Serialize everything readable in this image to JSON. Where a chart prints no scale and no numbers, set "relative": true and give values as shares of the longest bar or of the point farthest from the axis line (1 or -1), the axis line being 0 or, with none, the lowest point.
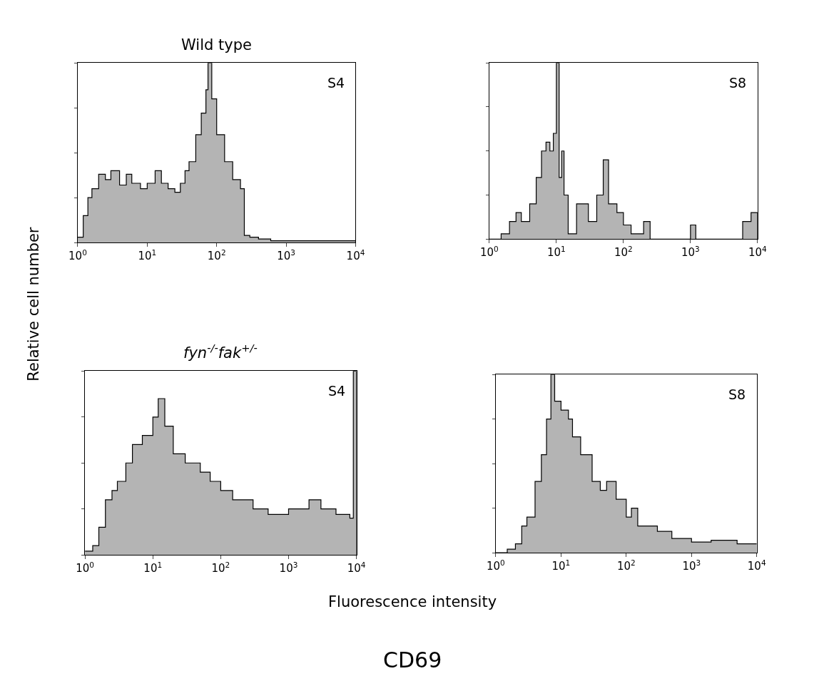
{
  "chart_data": [
    {
      "type": "area",
      "title": "Wild type",
      "ylabel": "Relative cell number",
      "annotations": [
        "S4"
      ],
      "relative": true,
      "log": "x",
      "tick_labels": "x",
      "xlim": [
        1,
        10000
      ],
      "xticks": [
        {
          "value": 1,
          "label": "10$^{0}$"
        },
        {
          "value": 10,
          "label": "10$^{1}$"
        },
        {
          "value": 100,
          "label": "10$^{2}$"
        },
        {
          "value": 1000,
          "label": "10$^{3}$"
        },
        {
          "value": 10000,
          "label": "10$^{4}$"
        }
      ],
      "series": [
        {
          "color": "#b4b4b4",
          "x": [
            1,
            1.2,
            1.4,
            1.6,
            2,
            2.5,
            3,
            4,
            5,
            6,
            8,
            10,
            13,
            16,
            20,
            25,
            30,
            35,
            40,
            50,
            60,
            70,
            75,
            85,
            100,
            130,
            170,
            220,
            250,
            300,
            400,
            600,
            1000,
            2000,
            10000
          ],
          "values": [
            0.03,
            0.15,
            0.25,
            0.3,
            0.38,
            0.35,
            0.4,
            0.32,
            0.38,
            0.33,
            0.3,
            0.33,
            0.4,
            0.33,
            0.3,
            0.28,
            0.33,
            0.4,
            0.45,
            0.6,
            0.72,
            0.85,
            1.0,
            0.8,
            0.6,
            0.45,
            0.35,
            0.3,
            0.04,
            0.03,
            0.02,
            0.01,
            0.01,
            0.01,
            0
          ]
        }
      ]
    },
    {
      "type": "area",
      "annotations": [
        "S8"
      ],
      "relative": true,
      "log": "x",
      "tick_labels": "x",
      "xlim": [
        1,
        10000
      ],
      "xticks": [
        {
          "value": 1,
          "label": "10$^{0}$"
        },
        {
          "value": 10,
          "label": "10$^{1}$"
        },
        {
          "value": 100,
          "label": "10$^{2}$"
        },
        {
          "value": 1000,
          "label": "10$^{3}$"
        },
        {
          "value": 10000,
          "label": "10$^{4}$"
        }
      ],
      "series": [
        {
          "color": "#b4b4b4",
          "x": [
            1,
            1.5,
            2,
            2.5,
            3,
            4,
            5,
            6,
            7,
            8,
            9,
            10,
            11,
            12,
            13,
            15,
            20,
            25,
            30,
            40,
            50,
            60,
            70,
            80,
            100,
            130,
            200,
            250,
            1000,
            1200,
            6000,
            8000,
            10000
          ],
          "values": [
            0,
            0.03,
            0.1,
            0.15,
            0.1,
            0.2,
            0.35,
            0.5,
            0.55,
            0.5,
            0.6,
            1.0,
            0.35,
            0.5,
            0.25,
            0.03,
            0.2,
            0.2,
            0.1,
            0.25,
            0.45,
            0.2,
            0.2,
            0.15,
            0.08,
            0.03,
            0.1,
            0,
            0.08,
            0,
            0.1,
            0.15,
            0
          ]
        }
      ]
    },
    {
      "type": "area",
      "title": "fyn$^{-/-}$fak$^{+/-}$",
      "xlabel": "Fluorescence intensity",
      "annotations": [
        "S4"
      ],
      "relative": true,
      "log": "x",
      "tick_labels": "x",
      "xlim": [
        1,
        10000
      ],
      "xticks": [
        {
          "value": 1,
          "label": "10$^{0}$"
        },
        {
          "value": 10,
          "label": "10$^{1}$"
        },
        {
          "value": 100,
          "label": "10$^{2}$"
        },
        {
          "value": 1000,
          "label": "10$^{3}$"
        },
        {
          "value": 10000,
          "label": "10$^{4}$"
        }
      ],
      "series": [
        {
          "color": "#b4b4b4",
          "x": [
            1,
            1.3,
            1.6,
            2,
            2.5,
            3,
            4,
            5,
            7,
            10,
            12,
            15,
            20,
            30,
            50,
            70,
            100,
            150,
            200,
            300,
            500,
            1000,
            2000,
            3000,
            5000,
            8000,
            9000,
            10000
          ],
          "values": [
            0.02,
            0.05,
            0.15,
            0.3,
            0.35,
            0.4,
            0.5,
            0.6,
            0.65,
            0.75,
            0.85,
            0.7,
            0.55,
            0.5,
            0.45,
            0.4,
            0.35,
            0.3,
            0.3,
            0.25,
            0.22,
            0.25,
            0.3,
            0.25,
            0.22,
            0.2,
            1.0,
            0
          ]
        }
      ]
    },
    {
      "type": "area",
      "annotations": [
        "S8",
        "CD69"
      ],
      "relative": true,
      "log": "x",
      "tick_labels": "x",
      "xlim": [
        1,
        10000
      ],
      "xticks": [
        {
          "value": 1,
          "label": "10$^{0}$"
        },
        {
          "value": 10,
          "label": "10$^{1}$"
        },
        {
          "value": 100,
          "label": "10$^{2}$"
        },
        {
          "value": 1000,
          "label": "10$^{3}$"
        },
        {
          "value": 10000,
          "label": "10$^{4}$"
        }
      ],
      "series": [
        {
          "color": "#b4b4b4",
          "x": [
            1,
            1.5,
            2,
            2.5,
            3,
            4,
            5,
            6,
            7,
            8,
            10,
            13,
            15,
            20,
            25,
            30,
            40,
            50,
            70,
            100,
            120,
            150,
            200,
            300,
            500,
            1000,
            2000,
            5000,
            10000
          ],
          "values": [
            0,
            0.02,
            0.05,
            0.15,
            0.2,
            0.4,
            0.55,
            0.75,
            1.0,
            0.85,
            0.8,
            0.75,
            0.65,
            0.55,
            0.55,
            0.4,
            0.35,
            0.4,
            0.3,
            0.2,
            0.25,
            0.15,
            0.15,
            0.12,
            0.08,
            0.06,
            0.07,
            0.05,
            0.05
          ]
        }
      ]
    }
  ]
}
